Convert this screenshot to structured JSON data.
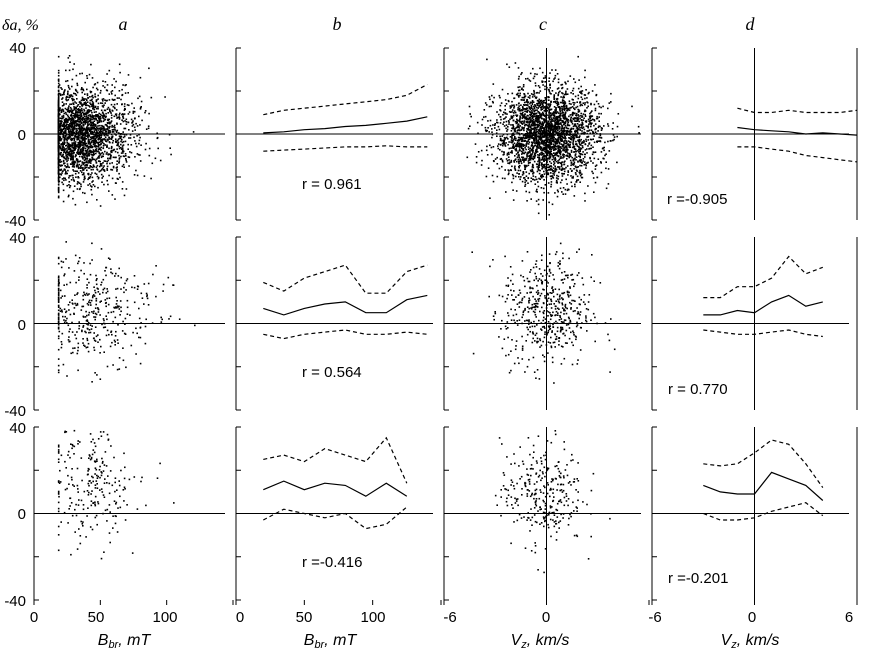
{
  "chart_data": {
    "type": "scatter",
    "ylabel": "δa, %",
    "column_letters": [
      "a",
      "b",
      "c",
      "d"
    ],
    "y_ticks": [
      "40",
      "0",
      "-40"
    ],
    "ylim": [
      -40,
      40
    ],
    "columns": [
      {
        "letter": "a",
        "kind": "scatter",
        "x_variable": "B_br",
        "xlim": [
          0,
          150
        ],
        "x_ticks": [
          "0",
          "50",
          "100"
        ]
      },
      {
        "letter": "b",
        "kind": "binned_mean",
        "x_variable": "B_br",
        "xlim": [
          0,
          150
        ],
        "x_ticks": [
          "0",
          "50",
          "100"
        ],
        "xlabel_main": "B",
        "xlabel_sub": "br",
        "xlabel_unit": ", mT"
      },
      {
        "letter": "c",
        "kind": "scatter",
        "x_variable": "V_z",
        "xlim": [
          -6,
          6
        ],
        "x_ticks": [
          "-6",
          "0"
        ],
        "xlabel_main": "V",
        "xlabel_sub": "z",
        "xlabel_unit": ", km/s"
      },
      {
        "letter": "d",
        "kind": "binned_mean",
        "x_variable": "V_z",
        "xlim": [
          -6,
          6
        ],
        "x_ticks": [
          "-6",
          "0",
          "6"
        ],
        "xlabel_main": "V",
        "xlabel_sub": "z",
        "xlabel_unit": ", km/s"
      }
    ],
    "x_axis_labels": [
      {
        "main": "B",
        "sub": "br",
        "unit": ", mT"
      },
      {
        "main": "B",
        "sub": "br",
        "unit": ", mT"
      },
      {
        "main": "V",
        "sub": "z",
        "unit": ", km/s"
      },
      {
        "main": "V",
        "sub": "z",
        "unit": ", km/s"
      }
    ],
    "rows": [
      {
        "b": {
          "r_label": "r = 0.961",
          "mean": {
            "x": [
              20,
              35,
              50,
              65,
              80,
              95,
              110,
              125,
              140
            ],
            "y": [
              0.5,
              1,
              2,
              2.5,
              3.5,
              4,
              5,
              6,
              8
            ]
          },
          "upper": {
            "x": [
              20,
              35,
              50,
              65,
              80,
              95,
              110,
              125,
              140
            ],
            "y": [
              9,
              11,
              12,
              13,
              14,
              15,
              16,
              18,
              23
            ]
          },
          "lower": {
            "x": [
              20,
              35,
              50,
              65,
              80,
              95,
              110,
              125,
              140
            ],
            "y": [
              -8,
              -7.5,
              -7,
              -6.5,
              -6,
              -6,
              -5.5,
              -6,
              -6
            ]
          }
        },
        "d": {
          "r_label": "r =-0.905",
          "mean": {
            "x": [
              -1,
              0,
              1,
              2,
              3,
              4,
              5,
              6
            ],
            "y": [
              3,
              2,
              1.5,
              1,
              0,
              0.5,
              0,
              -0.5
            ]
          },
          "upper": {
            "x": [
              -1,
              0,
              1,
              2,
              3,
              4,
              5,
              6
            ],
            "y": [
              12,
              10,
              10,
              11,
              10,
              10,
              10,
              11
            ]
          },
          "lower": {
            "x": [
              -1,
              0,
              1,
              2,
              3,
              4,
              5,
              6
            ],
            "y": [
              -6,
              -6,
              -7,
              -8,
              -10,
              -11,
              -12,
              -13
            ]
          }
        },
        "a_points": {
          "n": 2600,
          "x_center": 33,
          "x_spread": 22,
          "y_center": 0,
          "y_spread": 11
        },
        "c_points": {
          "n": 2800,
          "x_center": 0,
          "x_spread": 1.5,
          "y_center": 0,
          "y_spread": 11
        }
      },
      {
        "b": {
          "r_label": "r = 0.564",
          "mean": {
            "x": [
              20,
              35,
              50,
              65,
              80,
              95,
              110,
              125,
              140
            ],
            "y": [
              7,
              4,
              7,
              9,
              10,
              5,
              5,
              11,
              13
            ]
          },
          "upper": {
            "x": [
              20,
              35,
              50,
              65,
              80,
              95,
              110,
              125,
              140
            ],
            "y": [
              19,
              15,
              21,
              24,
              27,
              14,
              14,
              24,
              27
            ]
          },
          "lower": {
            "x": [
              20,
              35,
              50,
              65,
              80,
              95,
              110,
              125,
              140
            ],
            "y": [
              -5,
              -7,
              -5,
              -4,
              -3,
              -5,
              -5,
              -4,
              -5
            ]
          }
        },
        "d": {
          "r_label": "r = 0.770",
          "mean": {
            "x": [
              -3,
              -2,
              -1,
              0,
              1,
              2,
              3,
              4
            ],
            "y": [
              4,
              4,
              6,
              5,
              10,
              13,
              8,
              10
            ]
          },
          "upper": {
            "x": [
              -3,
              -2,
              -1,
              0,
              1,
              2,
              3,
              4
            ],
            "y": [
              12,
              12,
              17,
              17,
              21,
              31,
              23,
              26
            ]
          },
          "lower": {
            "x": [
              -3,
              -2,
              -1,
              0,
              1,
              2,
              3,
              4
            ],
            "y": [
              -3,
              -4,
              -5,
              -5,
              -4,
              -3,
              -5,
              -6
            ]
          }
        },
        "a_points": {
          "n": 420,
          "x_center": 45,
          "x_spread": 25,
          "y_center": 6,
          "y_spread": 13
        },
        "c_points": {
          "n": 520,
          "x_center": 0,
          "x_spread": 1.3,
          "y_center": 6,
          "y_spread": 13
        }
      },
      {
        "b": {
          "r_label": "r =-0.416",
          "mean": {
            "x": [
              20,
              35,
              50,
              65,
              80,
              95,
              110,
              125
            ],
            "y": [
              11,
              15,
              11,
              14,
              13,
              8,
              14,
              8
            ]
          },
          "upper": {
            "x": [
              20,
              35,
              50,
              65,
              80,
              95,
              110,
              125
            ],
            "y": [
              25,
              27,
              24,
              30,
              27,
              24,
              35,
              14
            ]
          },
          "lower": {
            "x": [
              20,
              35,
              50,
              65,
              80,
              95,
              110,
              125
            ],
            "y": [
              -3,
              2,
              0,
              -2,
              0,
              -7,
              -5,
              3
            ]
          }
        },
        "d": {
          "r_label": "r =-0.201",
          "mean": {
            "x": [
              -3,
              -2,
              -1,
              0,
              1,
              2,
              3,
              4
            ],
            "y": [
              13,
              10,
              9,
              9,
              19,
              16,
              13,
              6
            ]
          },
          "upper": {
            "x": [
              -3,
              -2,
              -1,
              0,
              1,
              2,
              3,
              4
            ],
            "y": [
              23,
              22,
              23,
              28,
              34,
              32,
              23,
              12
            ]
          },
          "lower": {
            "x": [
              -3,
              -2,
              -1,
              0,
              1,
              2,
              3,
              4
            ],
            "y": [
              0,
              -3,
              -3,
              -2,
              1,
              3,
              5,
              -1
            ]
          }
        },
        "a_points": {
          "n": 240,
          "x_center": 42,
          "x_spread": 20,
          "y_center": 14,
          "y_spread": 13
        },
        "c_points": {
          "n": 300,
          "x_center": -0.3,
          "x_spread": 1.2,
          "y_center": 10,
          "y_spread": 12
        }
      }
    ]
  }
}
